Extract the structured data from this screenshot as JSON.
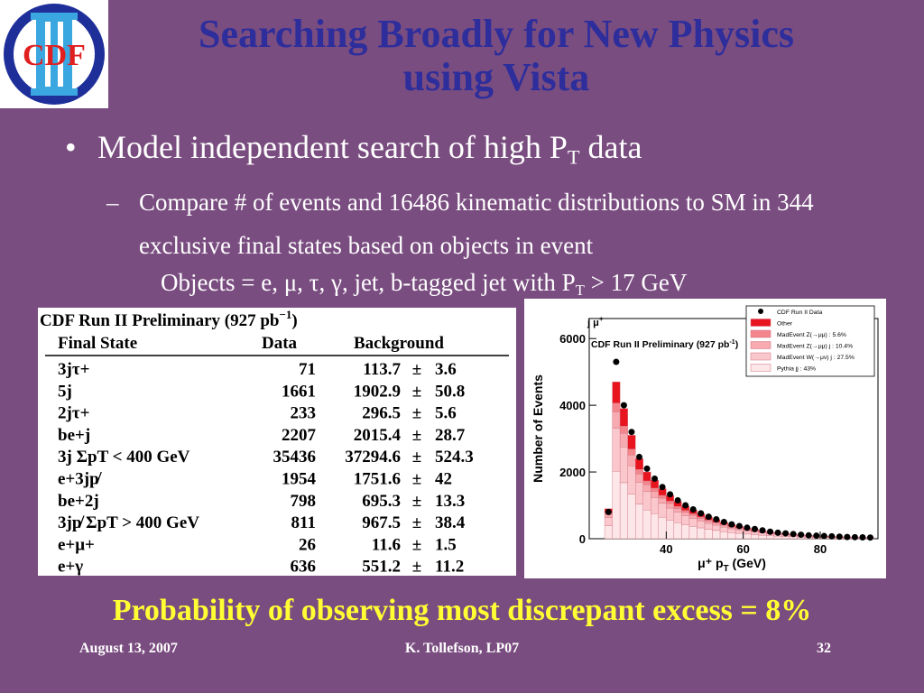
{
  "logo": {
    "text": "CDF",
    "numeral": "II",
    "colors": {
      "ring": "#1f2f9a",
      "text": "#e01f1f",
      "numeral": "#3aa7e0"
    }
  },
  "title": {
    "line1": "Searching Broadly for New Physics",
    "line2": "using Vista"
  },
  "bullet": {
    "symbol": "•",
    "text_main": "Model independent search of high P",
    "text_sub": "T",
    "text_after": " data"
  },
  "subbullet": {
    "dash": "–",
    "text": "Compare # of events and 16486 kinematic distributions to SM in 344 exclusive final states based on objects in event"
  },
  "objects_line": {
    "text_main": "Objects = e, μ, τ, γ, jet, b-tagged jet with P",
    "text_sub": "T",
    "text_after": " > 17 GeV"
  },
  "table": {
    "caption": "CDF Run II Preliminary (927 pb",
    "caption_exp": "−1",
    "caption_close": ")",
    "headers": [
      "Final State",
      "Data",
      "Background"
    ],
    "rows": [
      {
        "state": "3jτ+",
        "data": "71",
        "bg": "113.7",
        "err": "3.6"
      },
      {
        "state": "5j",
        "data": "1661",
        "bg": "1902.9",
        "err": "50.8"
      },
      {
        "state": "2jτ+",
        "data": "233",
        "bg": "296.5",
        "err": "5.6"
      },
      {
        "state": "be+j",
        "data": "2207",
        "bg": "2015.4",
        "err": "28.7"
      },
      {
        "state": "3j ΣpT < 400 GeV",
        "data": "35436",
        "bg": "37294.6",
        "err": "524.3"
      },
      {
        "state": "e+3jp̸",
        "data": "1954",
        "bg": "1751.6",
        "err": "42"
      },
      {
        "state": "be+2j",
        "data": "798",
        "bg": "695.3",
        "err": "13.3"
      },
      {
        "state": "3jp̸ ΣpT > 400 GeV",
        "data": "811",
        "bg": "967.5",
        "err": "38.4"
      },
      {
        "state": "e+μ+",
        "data": "26",
        "bg": "11.6",
        "err": "1.5"
      },
      {
        "state": "e+γ",
        "data": "636",
        "bg": "551.2",
        "err": "11.2"
      }
    ],
    "pm": "±"
  },
  "chart_data": {
    "type": "bar",
    "title": "CDF Run II Preliminary (927 pb",
    "title_exp": "-1",
    "title_close": ")",
    "final_state_label": "j μ",
    "final_state_sup": "+",
    "xlabel": "μ⁺ p",
    "xlabel_sub": "T",
    "xlabel_unit": " (GeV)",
    "ylabel": "Number of Events",
    "xlim": [
      20,
      95
    ],
    "ylim": [
      0,
      6600
    ],
    "xticks": [
      40,
      60,
      80
    ],
    "yticks": [
      0,
      2000,
      4000,
      6000
    ],
    "bin_width": 2,
    "x": [
      25,
      27,
      29,
      31,
      33,
      35,
      37,
      39,
      41,
      43,
      45,
      47,
      49,
      51,
      53,
      55,
      57,
      59,
      61,
      63,
      65,
      67,
      69,
      71,
      73,
      75,
      77,
      79,
      81,
      83,
      85,
      87,
      89,
      91,
      93
    ],
    "data": [
      800,
      5300,
      4000,
      3200,
      2450,
      2100,
      1800,
      1550,
      1330,
      1150,
      1000,
      880,
      760,
      660,
      580,
      500,
      430,
      380,
      330,
      290,
      250,
      210,
      180,
      160,
      140,
      120,
      100,
      90,
      80,
      70,
      60,
      50,
      45,
      40,
      35
    ],
    "total": [
      900,
      4700,
      3900,
      3100,
      2400,
      2000,
      1750,
      1500,
      1300,
      1120,
      980,
      860,
      750,
      650,
      570,
      490,
      420,
      370,
      320,
      280,
      240,
      200,
      175,
      155,
      135,
      115,
      100,
      88,
      78,
      68,
      58,
      50,
      45,
      40,
      35
    ],
    "legend": [
      {
        "name": "CDF Run II Data",
        "color": "#000000",
        "kind": "marker"
      },
      {
        "name": "Other",
        "color": "#e8141e",
        "kind": "box"
      },
      {
        "name": "MadEvent Z(→μμ) : 5.6%",
        "color": "#f3868d",
        "kind": "box"
      },
      {
        "name": "MadEvent Z(→μμ) j : 10.4%",
        "color": "#f7aab0",
        "kind": "box"
      },
      {
        "name": "MadEvent W(→μν) j : 27.5%",
        "color": "#fac8cc",
        "kind": "box"
      },
      {
        "name": "Pythia jj : 43%",
        "color": "#fde6e8",
        "kind": "box"
      }
    ],
    "stack_fractions": [
      0.135,
      0.056,
      0.104,
      0.275,
      0.43
    ]
  },
  "conclusion": "Probability of observing most discrepant excess = 8%",
  "footer": {
    "date": "August 13, 2007",
    "author": "K. Tollefson, LP07",
    "page": "32"
  }
}
